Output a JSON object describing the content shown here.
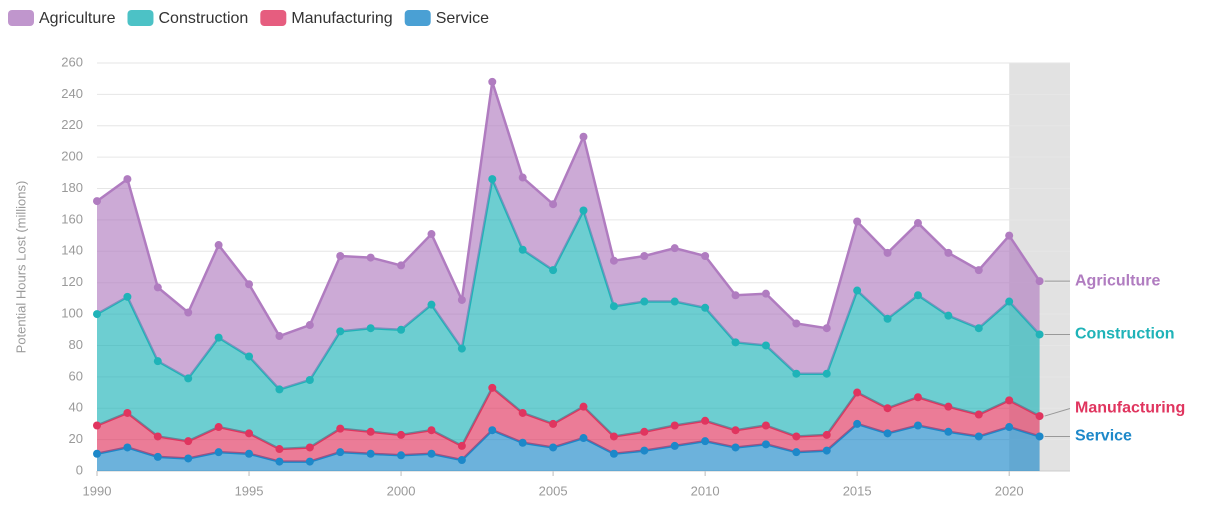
{
  "chart_data": {
    "type": "stacked_area",
    "y_axis_label": "Potential Hours Lost (millions)",
    "x": [
      1990,
      1991,
      1992,
      1993,
      1994,
      1995,
      1996,
      1997,
      1998,
      1999,
      2000,
      2001,
      2002,
      2003,
      2004,
      2005,
      2006,
      2007,
      2008,
      2009,
      2010,
      2011,
      2012,
      2013,
      2014,
      2015,
      2016,
      2017,
      2018,
      2019,
      2020,
      2021
    ],
    "series": [
      {
        "name": "Service",
        "color": "#1d88c9",
        "values": [
          11,
          15,
          9,
          8,
          12,
          11,
          6,
          6,
          12,
          11,
          10,
          11,
          7,
          26,
          18,
          15,
          21,
          11,
          13,
          16,
          19,
          15,
          17,
          12,
          13,
          30,
          24,
          29,
          25,
          22,
          28,
          22
        ]
      },
      {
        "name": "Manufacturing",
        "color": "#e0355f",
        "values": [
          18,
          22,
          13,
          11,
          16,
          13,
          8,
          9,
          15,
          14,
          13,
          15,
          9,
          27,
          19,
          15,
          20,
          11,
          12,
          13,
          13,
          11,
          12,
          10,
          10,
          20,
          16,
          18,
          16,
          14,
          17,
          13
        ]
      },
      {
        "name": "Construction",
        "color": "#1fb3b8",
        "values": [
          71,
          74,
          48,
          40,
          57,
          49,
          38,
          43,
          62,
          66,
          67,
          80,
          62,
          133,
          104,
          98,
          125,
          83,
          83,
          79,
          72,
          56,
          51,
          40,
          39,
          65,
          57,
          65,
          58,
          55,
          63,
          52
        ]
      },
      {
        "name": "Agriculture",
        "color": "#b07cc0",
        "values": [
          72,
          75,
          47,
          42,
          59,
          46,
          34,
          35,
          48,
          45,
          41,
          45,
          31,
          62,
          46,
          42,
          47,
          29,
          29,
          34,
          33,
          30,
          33,
          32,
          29,
          44,
          42,
          46,
          40,
          37,
          42,
          34
        ]
      }
    ],
    "legend_order": [
      3,
      2,
      1,
      0
    ],
    "xlim": [
      1990,
      2022
    ],
    "xticks": [
      1990,
      1995,
      2000,
      2005,
      2010,
      2015,
      2020
    ],
    "ylim": [
      0,
      260
    ],
    "yticks": [
      0,
      20,
      40,
      60,
      80,
      100,
      120,
      140,
      160,
      180,
      200,
      220,
      240,
      260
    ],
    "grid": true,
    "shaded_range": [
      2020,
      2022
    ]
  }
}
